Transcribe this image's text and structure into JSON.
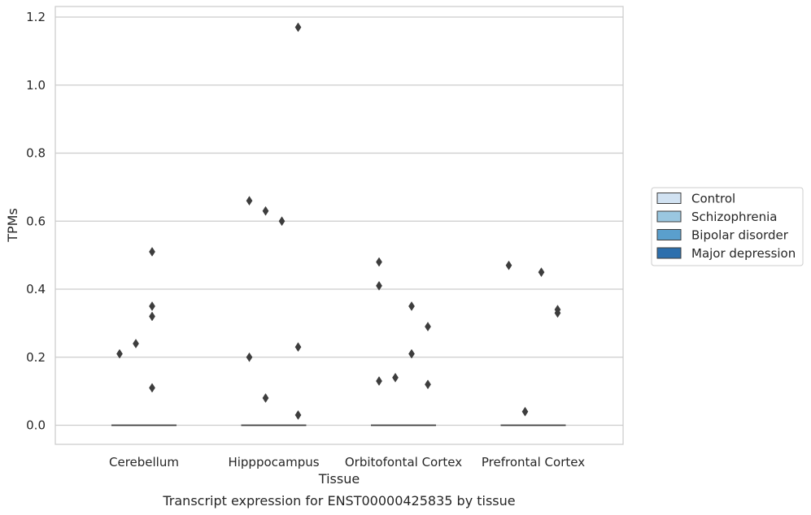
{
  "chart_data": {
    "type": "boxplot",
    "title": "",
    "caption": "Transcript expression for ENST00000425835 by tissue",
    "xlabel": "Tissue",
    "ylabel": "TPMs",
    "ylim": [
      -0.057,
      1.235
    ],
    "yticks": [
      0.0,
      0.2,
      0.4,
      0.6,
      0.8,
      1.0,
      1.2
    ],
    "ytick_labels": [
      "0.0",
      "0.2",
      "0.4",
      "0.6",
      "0.8",
      "1.0",
      "1.2"
    ],
    "grid": "horizontal",
    "legend_position": "right",
    "categories": [
      "Cerebellum",
      "Hipppocampus",
      "Orbitofontal Cortex",
      "Prefrontal Cortex"
    ],
    "series": [
      {
        "name": "Control",
        "color": "#d1e2f2",
        "median": [
          0.0,
          0.0,
          0.0,
          0.0
        ],
        "outliers": [
          [
            0.21
          ],
          [
            0.2,
            0.66
          ],
          [
            0.13,
            0.41,
            0.48
          ],
          [
            0.47
          ]
        ]
      },
      {
        "name": "Schizophrenia",
        "color": "#9ac7e0",
        "median": [
          0.0,
          0.0,
          0.0,
          0.0
        ],
        "outliers": [
          [
            0.24
          ],
          [
            0.08,
            0.63
          ],
          [
            0.14
          ],
          [
            0.04
          ]
        ]
      },
      {
        "name": "Bipolar disorder",
        "color": "#5a9fcd",
        "median": [
          0.0,
          0.0,
          0.0,
          0.0
        ],
        "outliers": [
          [
            0.11,
            0.32,
            0.35,
            0.51
          ],
          [
            0.6
          ],
          [
            0.21,
            0.35
          ],
          [
            0.45
          ]
        ]
      },
      {
        "name": "Major depression",
        "color": "#2c6fad",
        "median": [
          0.0,
          0.0,
          0.0,
          0.0
        ],
        "outliers": [
          [],
          [
            0.03,
            0.23,
            1.17
          ],
          [
            0.12,
            0.29
          ],
          [
            0.33,
            0.34
          ]
        ]
      }
    ]
  }
}
